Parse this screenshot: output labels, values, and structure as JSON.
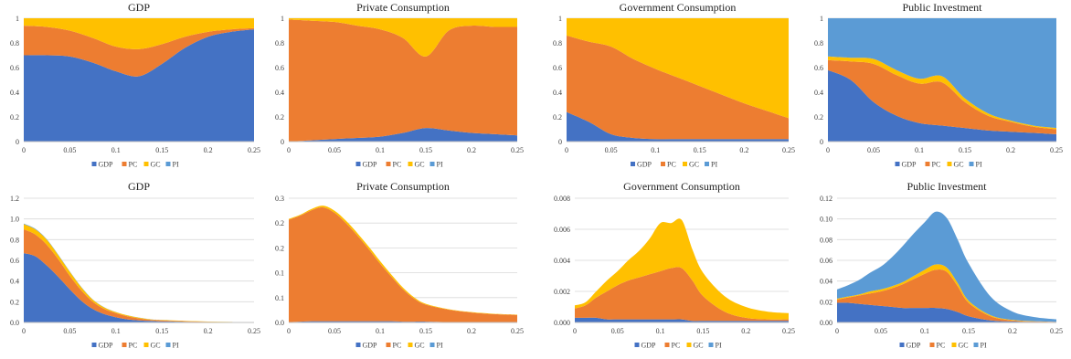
{
  "colors": {
    "GDP": "#4472C4",
    "PC": "#ED7D31",
    "GC": "#FFC000",
    "PI": "#5B9BD5",
    "axis": "#BFBFBF",
    "grid": "#D9D9D9"
  },
  "chart_data": [
    {
      "type": "area",
      "stacked": true,
      "title": "GDP",
      "x": [
        0,
        0.025,
        0.05,
        0.075,
        0.1,
        0.125,
        0.15,
        0.175,
        0.2,
        0.225,
        0.25
      ],
      "x_ticks": [
        "0",
        "0.05",
        "0.1",
        "0.15",
        "0.2",
        "0.25"
      ],
      "ylim": [
        0,
        1
      ],
      "y_ticks": [
        "0",
        "0.2",
        "0.4",
        "0.6",
        "0.8",
        "1"
      ],
      "legend": "bottom",
      "grid": true,
      "series": [
        {
          "name": "GDP",
          "values": [
            0.7,
            0.7,
            0.69,
            0.64,
            0.57,
            0.53,
            0.63,
            0.76,
            0.85,
            0.89,
            0.91
          ]
        },
        {
          "name": "PC",
          "values": [
            0.24,
            0.23,
            0.21,
            0.2,
            0.2,
            0.22,
            0.16,
            0.09,
            0.04,
            0.02,
            0.01
          ]
        },
        {
          "name": "GC",
          "values": [
            0.06,
            0.07,
            0.1,
            0.16,
            0.23,
            0.25,
            0.21,
            0.15,
            0.11,
            0.09,
            0.08
          ]
        },
        {
          "name": "PI",
          "values": [
            0,
            0,
            0,
            0,
            0,
            0,
            0,
            0,
            0,
            0,
            0
          ]
        }
      ]
    },
    {
      "type": "area",
      "stacked": true,
      "title": "Private Consumption",
      "x": [
        0,
        0.025,
        0.05,
        0.075,
        0.1,
        0.125,
        0.15,
        0.175,
        0.2,
        0.225,
        0.25
      ],
      "x_ticks": [
        "0",
        "0.05",
        "0.1",
        "0.15",
        "0.2",
        "0.25"
      ],
      "ylim": [
        0,
        1
      ],
      "y_ticks": [
        "0",
        "0.2",
        "0.4",
        "0.6",
        "0.8",
        "1"
      ],
      "legend": "bottom",
      "grid": true,
      "series": [
        {
          "name": "GDP",
          "values": [
            0.0,
            0.01,
            0.02,
            0.03,
            0.04,
            0.07,
            0.11,
            0.09,
            0.07,
            0.06,
            0.05
          ]
        },
        {
          "name": "PC",
          "values": [
            0.99,
            0.97,
            0.95,
            0.91,
            0.87,
            0.77,
            0.58,
            0.81,
            0.87,
            0.87,
            0.88
          ]
        },
        {
          "name": "GC",
          "values": [
            0.01,
            0.02,
            0.03,
            0.06,
            0.09,
            0.16,
            0.31,
            0.1,
            0.06,
            0.07,
            0.07
          ]
        },
        {
          "name": "PI",
          "values": [
            0,
            0,
            0,
            0,
            0,
            0,
            0,
            0,
            0,
            0,
            0
          ]
        }
      ]
    },
    {
      "type": "area",
      "stacked": true,
      "title": "Government Consumption",
      "x": [
        0,
        0.025,
        0.05,
        0.075,
        0.1,
        0.125,
        0.15,
        0.175,
        0.2,
        0.225,
        0.25
      ],
      "x_ticks": [
        "0",
        "0.05",
        "0.1",
        "0.15",
        "0.2",
        "0.25"
      ],
      "ylim": [
        0,
        1
      ],
      "y_ticks": [
        "0",
        "0.2",
        "0.4",
        "0.6",
        "0.8",
        "1"
      ],
      "legend": "bottom",
      "grid": true,
      "series": [
        {
          "name": "GDP",
          "values": [
            0.24,
            0.16,
            0.06,
            0.03,
            0.02,
            0.02,
            0.02,
            0.02,
            0.02,
            0.02,
            0.02
          ]
        },
        {
          "name": "PC",
          "values": [
            0.62,
            0.65,
            0.71,
            0.64,
            0.57,
            0.5,
            0.43,
            0.36,
            0.29,
            0.23,
            0.17
          ]
        },
        {
          "name": "GC",
          "values": [
            0.14,
            0.19,
            0.23,
            0.33,
            0.41,
            0.48,
            0.55,
            0.62,
            0.69,
            0.75,
            0.81
          ]
        },
        {
          "name": "PI",
          "values": [
            0,
            0,
            0,
            0,
            0,
            0,
            0,
            0,
            0,
            0,
            0
          ]
        }
      ]
    },
    {
      "type": "area",
      "stacked": true,
      "title": "Public Investment",
      "x": [
        0,
        0.025,
        0.05,
        0.075,
        0.1,
        0.125,
        0.15,
        0.175,
        0.2,
        0.225,
        0.25
      ],
      "x_ticks": [
        "0",
        "0.05",
        "0.1",
        "0.15",
        "0.2",
        "0.25"
      ],
      "ylim": [
        0,
        1
      ],
      "y_ticks": [
        "0",
        "0.2",
        "0.4",
        "0.6",
        "0.8",
        "1"
      ],
      "legend": "bottom",
      "grid": true,
      "series": [
        {
          "name": "GDP",
          "values": [
            0.58,
            0.5,
            0.32,
            0.21,
            0.15,
            0.13,
            0.11,
            0.09,
            0.08,
            0.07,
            0.06
          ]
        },
        {
          "name": "PC",
          "values": [
            0.08,
            0.15,
            0.31,
            0.33,
            0.32,
            0.35,
            0.21,
            0.12,
            0.08,
            0.05,
            0.04
          ]
        },
        {
          "name": "GC",
          "values": [
            0.03,
            0.03,
            0.04,
            0.04,
            0.04,
            0.05,
            0.03,
            0.02,
            0.01,
            0.01,
            0.01
          ]
        },
        {
          "name": "PI",
          "values": [
            0.31,
            0.32,
            0.33,
            0.42,
            0.49,
            0.47,
            0.65,
            0.77,
            0.83,
            0.87,
            0.89
          ]
        }
      ]
    },
    {
      "type": "area",
      "stacked": true,
      "title": "GDP",
      "x": [
        0,
        0.0125,
        0.025,
        0.0375,
        0.05,
        0.0625,
        0.075,
        0.0875,
        0.1,
        0.1125,
        0.125,
        0.1375,
        0.15,
        0.175,
        0.2,
        0.225,
        0.25
      ],
      "x_ticks": [
        "0",
        "0.05",
        "0.1",
        "0.15",
        "0.2",
        "0.25"
      ],
      "ylim": [
        0,
        1.2
      ],
      "y_ticks": [
        "0.0",
        "0.2",
        "0.4",
        "0.6",
        "0.8",
        "1.0",
        "1.2"
      ],
      "legend": "bottom",
      "grid": true,
      "series": [
        {
          "name": "GDP",
          "values": [
            0.67,
            0.64,
            0.55,
            0.44,
            0.32,
            0.21,
            0.13,
            0.08,
            0.05,
            0.03,
            0.02,
            0.015,
            0.01,
            0.007,
            0.004,
            0.002,
            0.001
          ]
        },
        {
          "name": "PC",
          "values": [
            0.23,
            0.21,
            0.2,
            0.17,
            0.13,
            0.1,
            0.07,
            0.05,
            0.04,
            0.03,
            0.02,
            0.01,
            0.01,
            0.005,
            0.003,
            0.002,
            0.001
          ]
        },
        {
          "name": "GC",
          "values": [
            0.05,
            0.05,
            0.05,
            0.04,
            0.04,
            0.03,
            0.02,
            0.015,
            0.01,
            0.008,
            0.006,
            0.005,
            0.004,
            0.003,
            0.002,
            0.001,
            0.001
          ]
        },
        {
          "name": "PI",
          "values": [
            0.005,
            0.005,
            0.004,
            0.004,
            0.003,
            0.003,
            0.002,
            0.002,
            0.001,
            0.001,
            0.001,
            0.001,
            0.001,
            0,
            0,
            0,
            0
          ]
        }
      ]
    },
    {
      "type": "area",
      "stacked": true,
      "title": "Private Consumption",
      "x": [
        0,
        0.0125,
        0.025,
        0.0375,
        0.05,
        0.0625,
        0.075,
        0.0875,
        0.1,
        0.1125,
        0.125,
        0.1375,
        0.15,
        0.175,
        0.2,
        0.225,
        0.25
      ],
      "x_ticks": [
        "0",
        "0.05",
        "0.1",
        "0.15",
        "0.2",
        "0.25"
      ],
      "ylim": [
        0,
        0.3
      ],
      "y_ticks": [
        "0.0",
        "0.1",
        "0.1",
        "0.2",
        "0.2",
        "0.3"
      ],
      "legend": "bottom",
      "grid": true,
      "series": [
        {
          "name": "GDP",
          "values": [
            0.001,
            0.002,
            0.003,
            0.003,
            0.003,
            0.003,
            0.003,
            0.003,
            0.003,
            0.003,
            0.002,
            0.002,
            0.002,
            0.001,
            0.001,
            0.001,
            0.001
          ]
        },
        {
          "name": "PC",
          "values": [
            0.247,
            0.256,
            0.268,
            0.275,
            0.262,
            0.237,
            0.207,
            0.174,
            0.139,
            0.107,
            0.078,
            0.055,
            0.041,
            0.03,
            0.023,
            0.019,
            0.017
          ]
        },
        {
          "name": "GC",
          "values": [
            0.002,
            0.002,
            0.003,
            0.004,
            0.005,
            0.006,
            0.006,
            0.006,
            0.006,
            0.005,
            0.004,
            0.003,
            0.002,
            0.001,
            0.001,
            0.001,
            0.001
          ]
        },
        {
          "name": "PI",
          "values": [
            0,
            0,
            0,
            0,
            0,
            0,
            0,
            0,
            0,
            0,
            0,
            0,
            0,
            0,
            0,
            0,
            0
          ]
        }
      ]
    },
    {
      "type": "area",
      "stacked": true,
      "title": "Government Consumption",
      "x": [
        0,
        0.0125,
        0.025,
        0.0375,
        0.05,
        0.0625,
        0.075,
        0.0875,
        0.1,
        0.1125,
        0.125,
        0.1375,
        0.15,
        0.175,
        0.2,
        0.225,
        0.25
      ],
      "x_ticks": [
        "0",
        "0.05",
        "0.1",
        "0.15",
        "0.2",
        "0.25"
      ],
      "ylim": [
        0,
        0.008
      ],
      "y_ticks": [
        "0.000",
        "0.002",
        "0.004",
        "0.006",
        "0.008"
      ],
      "legend": "bottom",
      "grid": true,
      "series": [
        {
          "name": "GDP",
          "values": [
            0.0003,
            0.0003,
            0.0003,
            0.0002,
            0.0002,
            0.0002,
            0.0002,
            0.0002,
            0.0002,
            0.0002,
            0.0002,
            0.0001,
            0.0001,
            0.0001,
            0.0001,
            0.0001,
            0.0001
          ]
        },
        {
          "name": "PC",
          "values": [
            0.0006,
            0.0008,
            0.0013,
            0.0018,
            0.0022,
            0.0025,
            0.0027,
            0.0029,
            0.0031,
            0.0033,
            0.0033,
            0.0026,
            0.0016,
            0.0006,
            0.0002,
            0.0001,
            0.0001
          ]
        },
        {
          "name": "GC",
          "values": [
            0.0002,
            0.0002,
            0.0004,
            0.0007,
            0.0009,
            0.0013,
            0.0017,
            0.0023,
            0.0031,
            0.0029,
            0.0031,
            0.002,
            0.0015,
            0.001,
            0.0007,
            0.0005,
            0.0004
          ]
        },
        {
          "name": "PI",
          "values": [
            0,
            0,
            0,
            0,
            0,
            0,
            0,
            0,
            0,
            0,
            0,
            0,
            0,
            0,
            0,
            0,
            0
          ]
        }
      ]
    },
    {
      "type": "area",
      "stacked": true,
      "title": "Public Investment",
      "x": [
        0,
        0.0125,
        0.025,
        0.0375,
        0.05,
        0.0625,
        0.075,
        0.0875,
        0.1,
        0.1125,
        0.125,
        0.1375,
        0.15,
        0.175,
        0.2,
        0.225,
        0.25
      ],
      "x_ticks": [
        "0",
        "0.05",
        "0.1",
        "0.15",
        "0.2",
        "0.25"
      ],
      "ylim": [
        0,
        0.12
      ],
      "y_ticks": [
        "0.00",
        "0.02",
        "0.04",
        "0.06",
        "0.08",
        "0.10",
        "0.12"
      ],
      "legend": "bottom",
      "grid": true,
      "series": [
        {
          "name": "GDP",
          "values": [
            0.019,
            0.019,
            0.018,
            0.017,
            0.016,
            0.015,
            0.014,
            0.014,
            0.014,
            0.014,
            0.013,
            0.01,
            0.006,
            0.002,
            0.001,
            0.0005,
            0.0003
          ]
        },
        {
          "name": "PC",
          "values": [
            0.003,
            0.005,
            0.008,
            0.011,
            0.014,
            0.018,
            0.023,
            0.028,
            0.033,
            0.037,
            0.036,
            0.025,
            0.013,
            0.004,
            0.001,
            0.0005,
            0.0003
          ]
        },
        {
          "name": "GC",
          "values": [
            0.001,
            0.001,
            0.001,
            0.002,
            0.002,
            0.002,
            0.002,
            0.003,
            0.004,
            0.005,
            0.004,
            0.003,
            0.002,
            0.001,
            0.0005,
            0.0002,
            0.0001
          ]
        },
        {
          "name": "PI",
          "values": [
            0.009,
            0.011,
            0.014,
            0.018,
            0.022,
            0.028,
            0.035,
            0.041,
            0.046,
            0.051,
            0.048,
            0.042,
            0.036,
            0.018,
            0.008,
            0.004,
            0.0024
          ]
        }
      ]
    }
  ]
}
